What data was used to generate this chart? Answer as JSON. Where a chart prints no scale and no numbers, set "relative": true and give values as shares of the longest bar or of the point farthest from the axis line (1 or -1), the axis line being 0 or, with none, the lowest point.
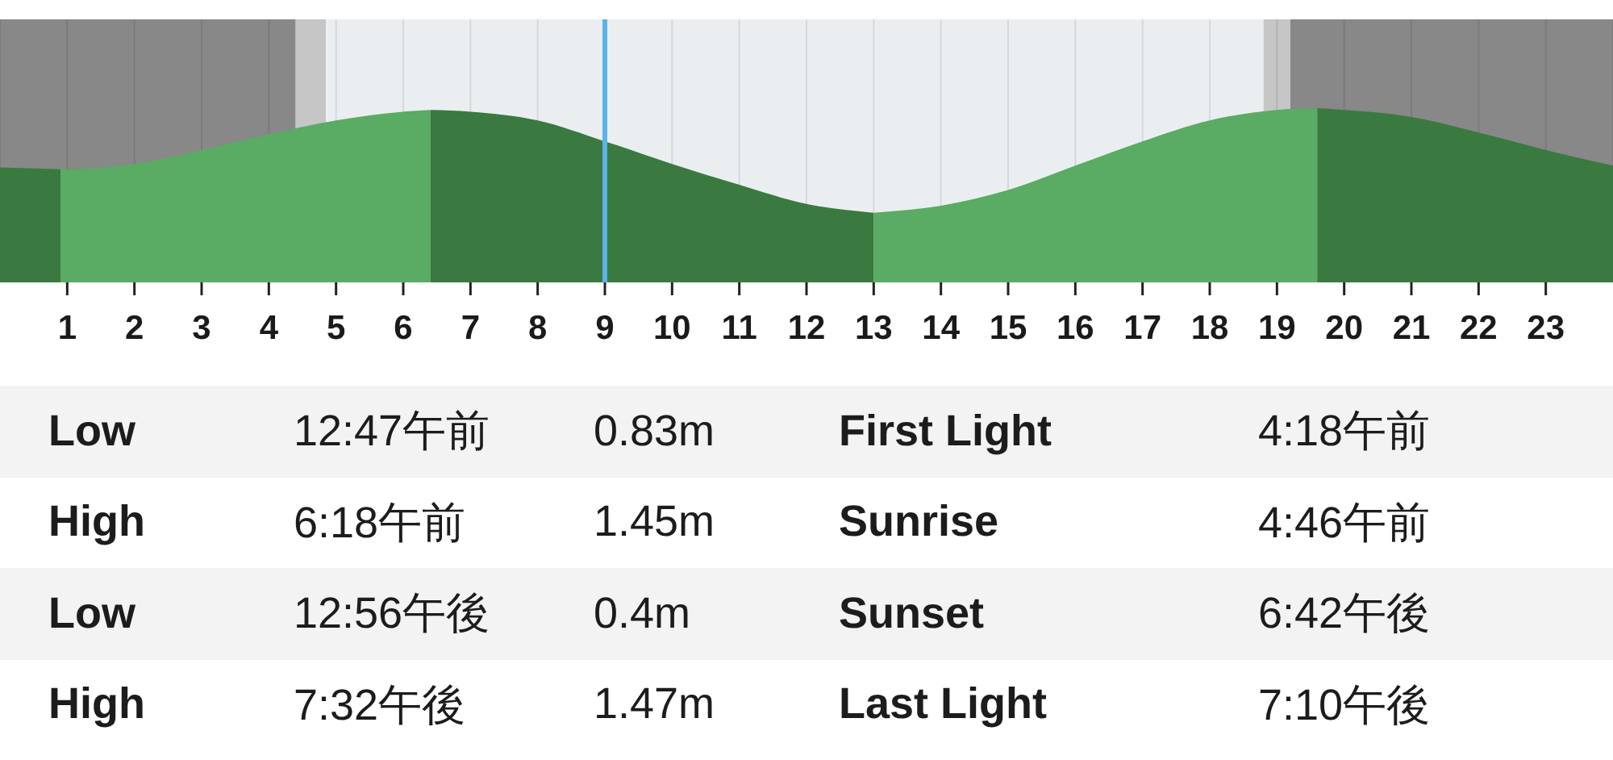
{
  "chart_data": [
    {
      "type": "area",
      "relative": true,
      "x": [
        0,
        0.9,
        1,
        2,
        3,
        4,
        5,
        6,
        6.4,
        7,
        8,
        9,
        10,
        11,
        12,
        13,
        14,
        15,
        16,
        17,
        18,
        19,
        19.6,
        20,
        21,
        22,
        23,
        24
      ],
      "series": [
        {
          "color": "#3a7a40",
          "values": [
            0.66,
            0.65,
            null,
            null,
            null,
            null,
            null,
            null,
            0.99,
            0.98,
            0.93,
            0.81,
            0.68,
            0.56,
            0.45,
            0.4,
            null,
            null,
            null,
            null,
            null,
            null,
            1.0,
            0.99,
            0.95,
            0.86,
            0.76,
            0.67
          ]
        },
        {
          "color": "#5aab63",
          "values": [
            null,
            0.65,
            0.65,
            0.68,
            0.76,
            0.85,
            0.93,
            0.98,
            0.99,
            null,
            null,
            null,
            null,
            null,
            null,
            0.4,
            0.44,
            0.53,
            0.67,
            0.81,
            0.93,
            0.99,
            1.0,
            null,
            null,
            null,
            null,
            null
          ]
        }
      ],
      "xlim": [
        0,
        24
      ],
      "xticks": [
        1,
        2,
        3,
        4,
        5,
        6,
        7,
        8,
        9,
        10,
        11,
        12,
        13,
        14,
        15,
        16,
        17,
        18,
        19,
        20,
        21,
        22,
        23
      ],
      "grid": "x",
      "bands": [
        {
          "axis": "x",
          "from": 0,
          "to": 4.4,
          "color": "#888888"
        },
        {
          "axis": "x",
          "from": 4.4,
          "to": 4.85,
          "color": "#c6c6c6"
        },
        {
          "axis": "x",
          "from": 4.85,
          "to": 18.8,
          "color": "#ebeef0"
        },
        {
          "axis": "x",
          "from": 18.8,
          "to": 19.2,
          "color": "#c6c6c6"
        },
        {
          "axis": "x",
          "from": 19.2,
          "to": 24,
          "color": "#888888"
        }
      ],
      "ref_lines": [
        {
          "axis": "x",
          "value": 9,
          "color": "#5ab4e5"
        }
      ]
    },
    {
      "type": "other",
      "annotations": [
        "Low",
        "12:47午前",
        "0.83m",
        "First Light",
        "4:18午前",
        "High",
        "6:18午前",
        "1.45m",
        "Sunrise",
        "4:46午前",
        "Low",
        "12:56午後",
        "0.4m",
        "Sunset",
        "6:42午後",
        "High",
        "7:32午後",
        "1.47m",
        "Last Light",
        "7:10午後"
      ]
    }
  ]
}
